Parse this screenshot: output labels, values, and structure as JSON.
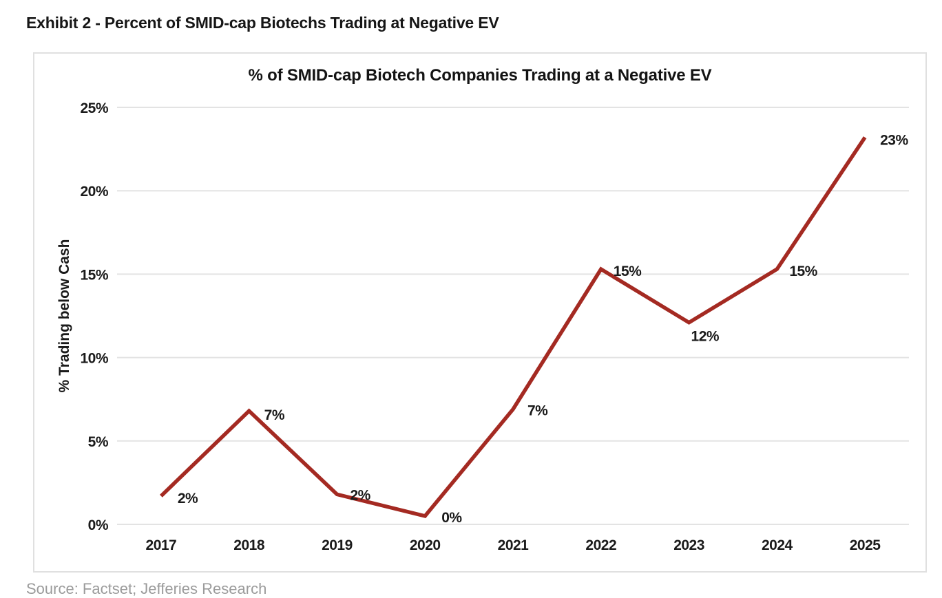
{
  "page": {
    "exhibit_title": "Exhibit 2 - Percent of SMID-cap Biotechs Trading at Negative EV",
    "source_text": "Source: Factset; Jefferies Research"
  },
  "chart_data": {
    "type": "line",
    "title": "% of SMID-cap Biotech Companies Trading at a Negative EV",
    "xlabel": "",
    "ylabel": "% Trading below Cash",
    "categories": [
      "2017",
      "2018",
      "2019",
      "2020",
      "2021",
      "2022",
      "2023",
      "2024",
      "2025"
    ],
    "values": [
      2,
      7,
      2,
      0,
      7,
      15,
      12,
      15,
      23
    ],
    "point_labels": [
      "2%",
      "7%",
      "2%",
      "0%",
      "7%",
      "15%",
      "12%",
      "15%",
      "23%"
    ],
    "plotted_values_estimate": [
      1.7,
      6.8,
      1.8,
      0.5,
      6.9,
      15.3,
      12.1,
      15.3,
      23.2
    ],
    "ylim": [
      0,
      25
    ],
    "ytick_values": [
      0,
      5,
      10,
      15,
      20,
      25
    ],
    "ytick_labels": [
      "0%",
      "5%",
      "10%",
      "15%",
      "20%",
      "25%"
    ],
    "grid": "horizontal",
    "legend": "none",
    "line_color": "#A42A22",
    "grid_color": "#e3e3e3",
    "label_color": "#1a1a1a"
  }
}
